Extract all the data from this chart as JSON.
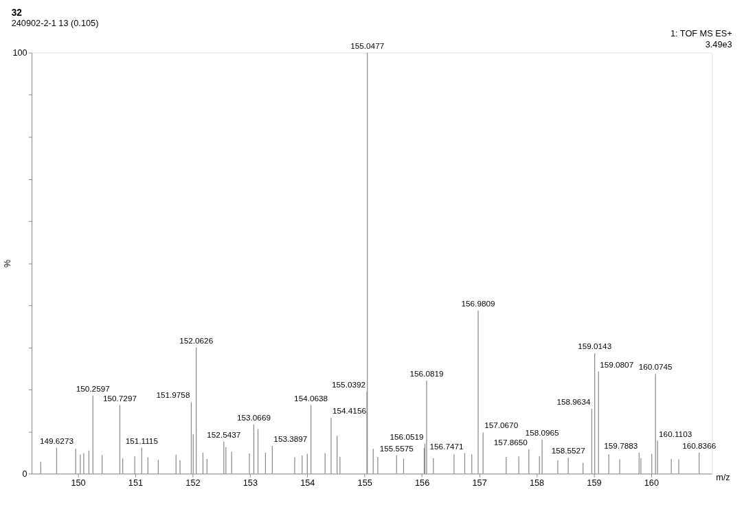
{
  "chart_data": {
    "type": "bar",
    "title": "32",
    "subtitle": "240902-2-1 13 (0.105)",
    "xlabel": "m/z",
    "ylabel": "%",
    "color": "#8c8c8c",
    "x": [
      149.35,
      149.6273,
      149.96,
      150.04,
      150.1,
      150.19,
      150.2597,
      150.42,
      150.7297,
      150.78,
      150.99,
      151.1115,
      151.22,
      151.4,
      151.71,
      151.78,
      151.9758,
      152.01,
      152.0626,
      152.18,
      152.25,
      152.5437,
      152.58,
      152.68,
      152.99,
      153.0669,
      153.14,
      153.27,
      153.3897,
      153.78,
      153.91,
      154.0,
      154.0638,
      154.31,
      154.4156,
      154.52,
      154.57,
      155.0392,
      155.0477,
      155.15,
      155.23,
      155.5575,
      155.68,
      156.04,
      156.0519,
      156.0819,
      156.2,
      156.56,
      156.7471,
      156.87,
      156.9809,
      157.067,
      157.47,
      157.69,
      157.865,
      158.05,
      158.0965,
      158.37,
      158.5527,
      158.81,
      158.9634,
      159.0143,
      159.0807,
      159.26,
      159.45,
      159.7883,
      159.82,
      160.01,
      160.0745,
      160.1103,
      160.35,
      160.48,
      160.8366
    ],
    "values": [
      2.8,
      6.2,
      5.9,
      4.5,
      4.9,
      5.5,
      18.6,
      4.4,
      16.3,
      3.6,
      4.1,
      6.2,
      3.9,
      3.3,
      4.5,
      3.2,
      17.0,
      9.4,
      30.0,
      5.0,
      3.5,
      7.6,
      6.3,
      5.2,
      4.8,
      11.7,
      10.6,
      5.0,
      6.6,
      3.9,
      4.3,
      4.7,
      16.3,
      4.9,
      13.3,
      9.0,
      4.0,
      19.5,
      100,
      5.9,
      4.0,
      4.4,
      3.6,
      6.1,
      7.1,
      22.1,
      3.7,
      4.6,
      4.9,
      4.6,
      38.7,
      9.8,
      4.0,
      4.1,
      5.8,
      4.2,
      8.1,
      3.2,
      3.8,
      2.6,
      15.4,
      28.6,
      24.3,
      4.6,
      3.4,
      5.0,
      3.7,
      4.7,
      23.7,
      7.8,
      3.5,
      3.4,
      5.0
    ],
    "xlim": [
      149.25,
      161.0
    ],
    "xticks": [
      150,
      151,
      152,
      153,
      154,
      155,
      156,
      157,
      158,
      159,
      160
    ],
    "ylim": [
      0,
      100
    ],
    "yticks": [
      0,
      {
        "value": 10,
        "label": null
      },
      {
        "value": 20,
        "label": null
      },
      {
        "value": 30,
        "label": null
      },
      {
        "value": 40,
        "label": null
      },
      {
        "value": 50,
        "label": null
      },
      {
        "value": 60,
        "label": null
      },
      {
        "value": 70,
        "label": null
      },
      {
        "value": 80,
        "label": null
      },
      {
        "value": 90,
        "label": null
      },
      100
    ],
    "grid": false,
    "annotations": [
      "1: TOF MS ES+",
      "3.49e3",
      {
        "text": "149.6273",
        "x": 149.6273,
        "y": 6.2
      },
      {
        "text": "150.2597",
        "x": 150.2597,
        "y": 18.6
      },
      {
        "text": "150.7297",
        "x": 150.7297,
        "y": 16.3
      },
      {
        "text": "151.1115",
        "x": 151.1115,
        "y": 6.2
      },
      {
        "text": "151.9758",
        "x": 151.9758,
        "y": 17.0
      },
      {
        "text": "152.0626",
        "x": 152.0626,
        "y": 30.0
      },
      {
        "text": "152.5437",
        "x": 152.5437,
        "y": 7.6
      },
      {
        "text": "153.0669",
        "x": 153.0669,
        "y": 11.7
      },
      {
        "text": "153.3897",
        "x": 153.3897,
        "y": 6.6
      },
      {
        "text": "154.0638",
        "x": 154.0638,
        "y": 16.3
      },
      {
        "text": "154.4156",
        "x": 154.4156,
        "y": 13.3
      },
      {
        "text": "155.0392",
        "x": 155.0392,
        "y": 19.5
      },
      {
        "text": "155.0477",
        "x": 155.0477,
        "y": 100
      },
      {
        "text": "155.5575",
        "x": 155.5575,
        "y": 4.4
      },
      {
        "text": "156.0519",
        "x": 156.0519,
        "y": 7.1
      },
      {
        "text": "156.0819",
        "x": 156.0819,
        "y": 22.1
      },
      {
        "text": "156.7471",
        "x": 156.7471,
        "y": 4.9
      },
      {
        "text": "156.9809",
        "x": 156.9809,
        "y": 38.7
      },
      {
        "text": "157.0670",
        "x": 157.067,
        "y": 9.8
      },
      {
        "text": "157.8650",
        "x": 157.865,
        "y": 5.8
      },
      {
        "text": "158.0965",
        "x": 158.0965,
        "y": 8.1
      },
      {
        "text": "158.5527",
        "x": 158.5527,
        "y": 3.8
      },
      {
        "text": "158.9634",
        "x": 158.9634,
        "y": 15.4
      },
      {
        "text": "159.0143",
        "x": 159.0143,
        "y": 28.6
      },
      {
        "text": "159.0807",
        "x": 159.0807,
        "y": 24.3
      },
      {
        "text": "159.7883",
        "x": 159.7883,
        "y": 5.0
      },
      {
        "text": "160.0745",
        "x": 160.0745,
        "y": 23.7
      },
      {
        "text": "160.1103",
        "x": 160.1103,
        "y": 7.8
      },
      {
        "text": "160.8366",
        "x": 160.8366,
        "y": 5.0
      }
    ]
  }
}
